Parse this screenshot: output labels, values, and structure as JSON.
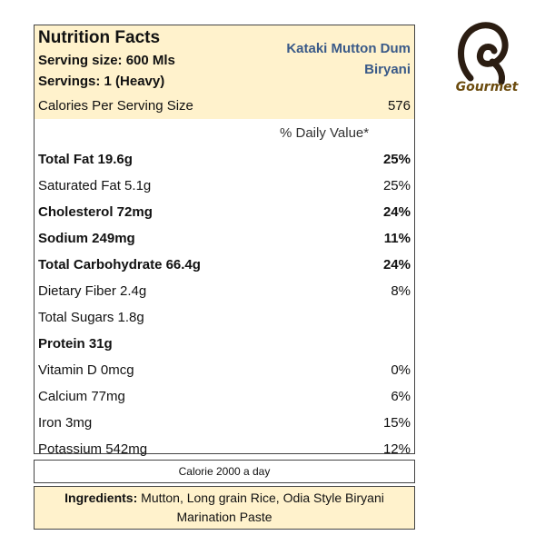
{
  "panel": {
    "title": "Nutrition Facts",
    "serving_size": "Serving size: 600 Mls",
    "servings": "Servings: 1 (Heavy)",
    "product_line1": "Kataki Mutton Dum",
    "product_line2": "Biryani",
    "calories_label": "Calories Per Serving Size",
    "calories_value": "576",
    "dv_header": "% Daily Value*",
    "rows": [
      {
        "label": "Total Fat 19.6g",
        "value": "25%",
        "bold": true
      },
      {
        "label": "Saturated Fat 5.1g",
        "value": "25%",
        "bold": false
      },
      {
        "label": "Cholesterol 72mg",
        "value": "24%",
        "bold": true
      },
      {
        "label": "Sodium 249mg",
        "value": "11%",
        "bold": true
      },
      {
        "label": "Total Carbohydrate 66.4g",
        "value": "24%",
        "bold": true
      },
      {
        "label": "Dietary Fiber 2.4g",
        "value": "8%",
        "bold": false
      },
      {
        "label": "Total Sugars 1.8g",
        "value": "",
        "bold": false
      },
      {
        "label": "Protein 31g",
        "value": "",
        "bold": true
      },
      {
        "label": "Vitamin D 0mcg",
        "value": "0%",
        "bold": false
      },
      {
        "label": "Calcium 77mg",
        "value": "6%",
        "bold": false
      },
      {
        "label": "Iron 3mg",
        "value": "15%",
        "bold": false
      },
      {
        "label": "Potassium 542mg",
        "value": "12%",
        "bold": false
      }
    ]
  },
  "footer": {
    "calorie_note": "Calorie 2000 a day",
    "ingredients_label": "Ingredients:",
    "ingredients_text": " Mutton, Long grain Rice, Odia Style Biryani Marination Paste"
  },
  "logo": {
    "icon": "gourmet-logo-icon",
    "text": "Gourmet",
    "color": "#2b1d12",
    "text_color": "#6b4b0e"
  },
  "colors": {
    "header_bg": "#fff2cc",
    "product_name": "#3a5a88"
  }
}
